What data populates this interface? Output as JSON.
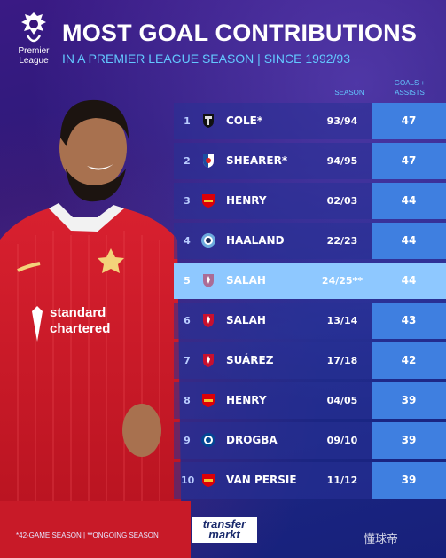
{
  "brand": {
    "logo_line1": "Premier",
    "logo_line2": "League"
  },
  "header": {
    "title": "MOST GOAL CONTRIBUTIONS",
    "subtitle": "IN A PREMIER LEAGUE SEASON | SINCE 1992/93"
  },
  "columns": {
    "season": "SEASON",
    "ga_line1": "GOALS +",
    "ga_line2": "ASSISTS"
  },
  "rows": [
    {
      "rank": "1",
      "club": "newcastle-badge",
      "name": "COLE*",
      "season": "93/94",
      "value": "47"
    },
    {
      "rank": "2",
      "club": "blackburn-badge",
      "name": "SHEARER*",
      "season": "94/95",
      "value": "47"
    },
    {
      "rank": "3",
      "club": "arsenal-badge",
      "name": "HENRY",
      "season": "02/03",
      "value": "44"
    },
    {
      "rank": "4",
      "club": "man-city-badge",
      "name": "HAALAND",
      "season": "22/23",
      "value": "44"
    },
    {
      "rank": "5",
      "club": "liverpool-badge",
      "name": "SALAH",
      "season": "24/25**",
      "value": "44"
    },
    {
      "rank": "6",
      "club": "liverpool-badge",
      "name": "SALAH",
      "season": "13/14",
      "value": "43"
    },
    {
      "rank": "7",
      "club": "liverpool-badge",
      "name": "SUÁREZ",
      "season": "17/18",
      "value": "42"
    },
    {
      "rank": "8",
      "club": "arsenal-badge",
      "name": "HENRY",
      "season": "04/05",
      "value": "39"
    },
    {
      "rank": "9",
      "club": "chelsea-badge",
      "name": "DROGBA",
      "season": "09/10",
      "value": "39"
    },
    {
      "rank": "10",
      "club": "arsenal-badge",
      "name": "VAN PERSIE",
      "season": "11/12",
      "value": "39"
    }
  ],
  "footnote": "*42-GAME SEASON | **ONGOING SEASON",
  "transfermarkt": {
    "line1": "transfer",
    "line2": "markt"
  },
  "watermark": "懂球帝",
  "colors": {
    "highlight": "#8ec8ff",
    "value_cell": "#3f7fe0",
    "accent": "#63c8ff"
  }
}
